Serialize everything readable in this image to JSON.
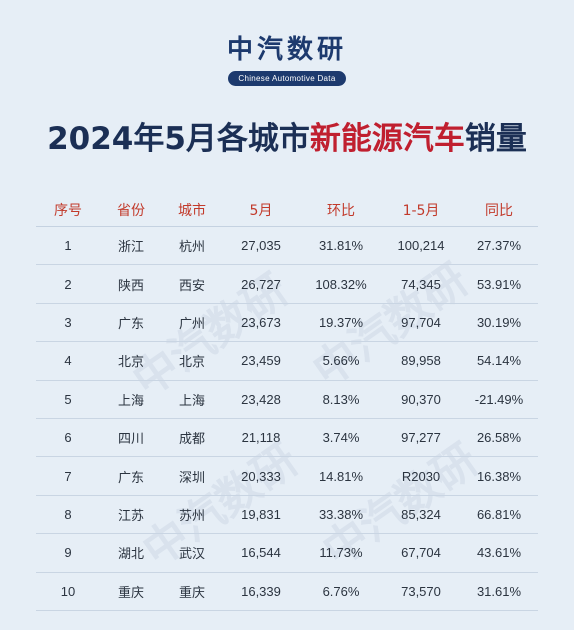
{
  "brand": {
    "name": "中汽数研",
    "subtitle": "Chinese Automotive Data"
  },
  "title": {
    "part1": "2024年5月各城市",
    "highlight": "新能源汽车",
    "part2": "销量"
  },
  "table": {
    "headers": [
      "序号",
      "省份",
      "城市",
      "5月",
      "环比",
      "1-5月",
      "同比"
    ],
    "rows": [
      [
        "1",
        "浙江",
        "杭州",
        "27,035",
        "31.81%",
        "100,214",
        "27.37%"
      ],
      [
        "2",
        "陕西",
        "西安",
        "26,727",
        "108.32%",
        "74,345",
        "53.91%"
      ],
      [
        "3",
        "广东",
        "广州",
        "23,673",
        "19.37%",
        "97,704",
        "30.19%"
      ],
      [
        "4",
        "北京",
        "北京",
        "23,459",
        "5.66%",
        "89,958",
        "54.14%"
      ],
      [
        "5",
        "上海",
        "上海",
        "23,428",
        "8.13%",
        "90,370",
        "-21.49%"
      ],
      [
        "6",
        "四川",
        "成都",
        "21,118",
        "3.74%",
        "97,277",
        "26.58%"
      ],
      [
        "7",
        "广东",
        "深圳",
        "20,333",
        "14.81%",
        "R2030",
        "16.38%"
      ],
      [
        "8",
        "江苏",
        "苏州",
        "19,831",
        "33.38%",
        "85,324",
        "66.81%"
      ],
      [
        "9",
        "湖北",
        "武汉",
        "16,544",
        "11.73%",
        "67,704",
        "43.61%"
      ],
      [
        "10",
        "重庆",
        "重庆",
        "16,339",
        "6.76%",
        "73,570",
        "31.61%"
      ]
    ]
  },
  "colors": {
    "background": "#e6eef6",
    "title": "#1b2f55",
    "highlight": "#c01f2f",
    "header": "#c23a2b",
    "brand": "#1d3a6e"
  }
}
